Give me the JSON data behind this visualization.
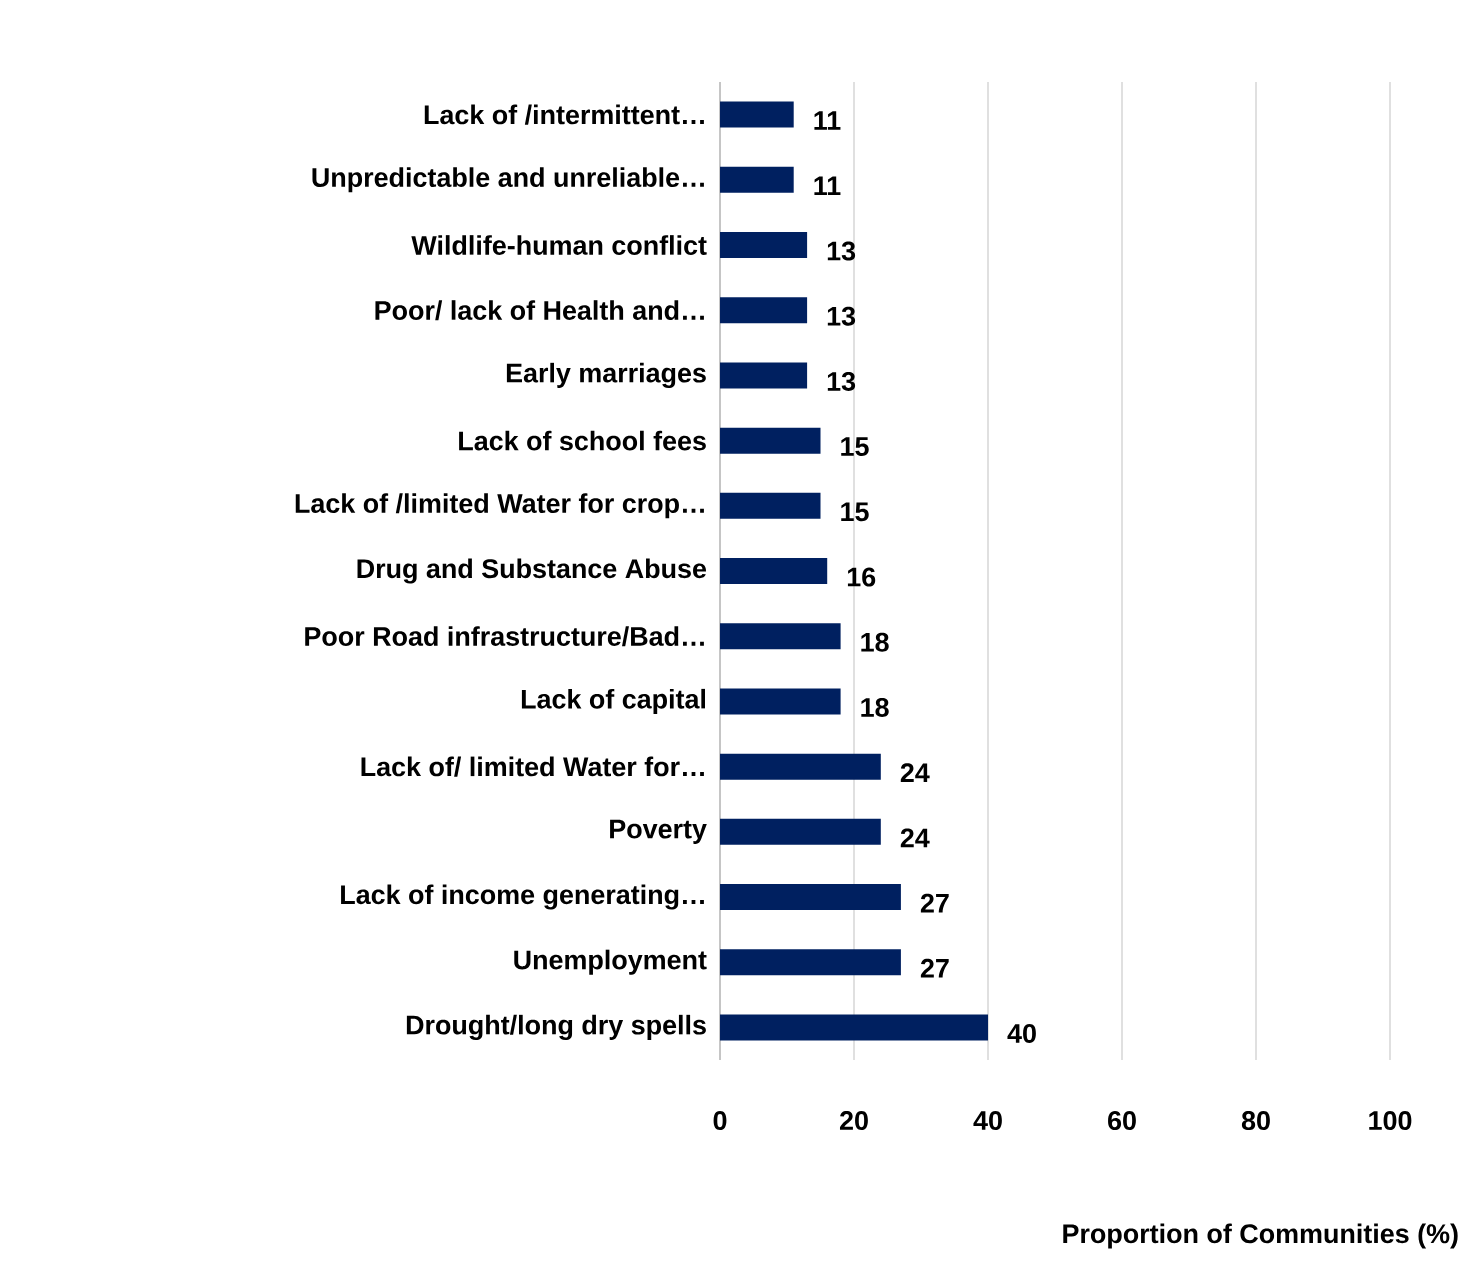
{
  "chart_data": {
    "type": "bar",
    "orientation": "horizontal",
    "categories": [
      "Lack of /intermittent…",
      "Unpredictable and unreliable…",
      "Wildlife-human conflict",
      "Poor/ lack of Health and…",
      "Early marriages",
      "Lack of school fees",
      "Lack of /limited Water for crop…",
      "Drug and Substance Abuse",
      "Poor Road infrastructure/Bad…",
      "Lack of capital",
      "Lack of/ limited Water for…",
      "Poverty",
      "Lack of income generating…",
      "Unemployment",
      "Drought/long dry spells"
    ],
    "values": [
      11,
      11,
      13,
      13,
      13,
      15,
      15,
      16,
      18,
      18,
      24,
      24,
      27,
      27,
      40
    ],
    "color": "#002060",
    "data_labels": true,
    "grid": "x",
    "xlim": [
      0,
      100
    ],
    "xticks": [
      0,
      20,
      40,
      60,
      80,
      100
    ],
    "xlabel": "Proportion of Communities (%)"
  }
}
